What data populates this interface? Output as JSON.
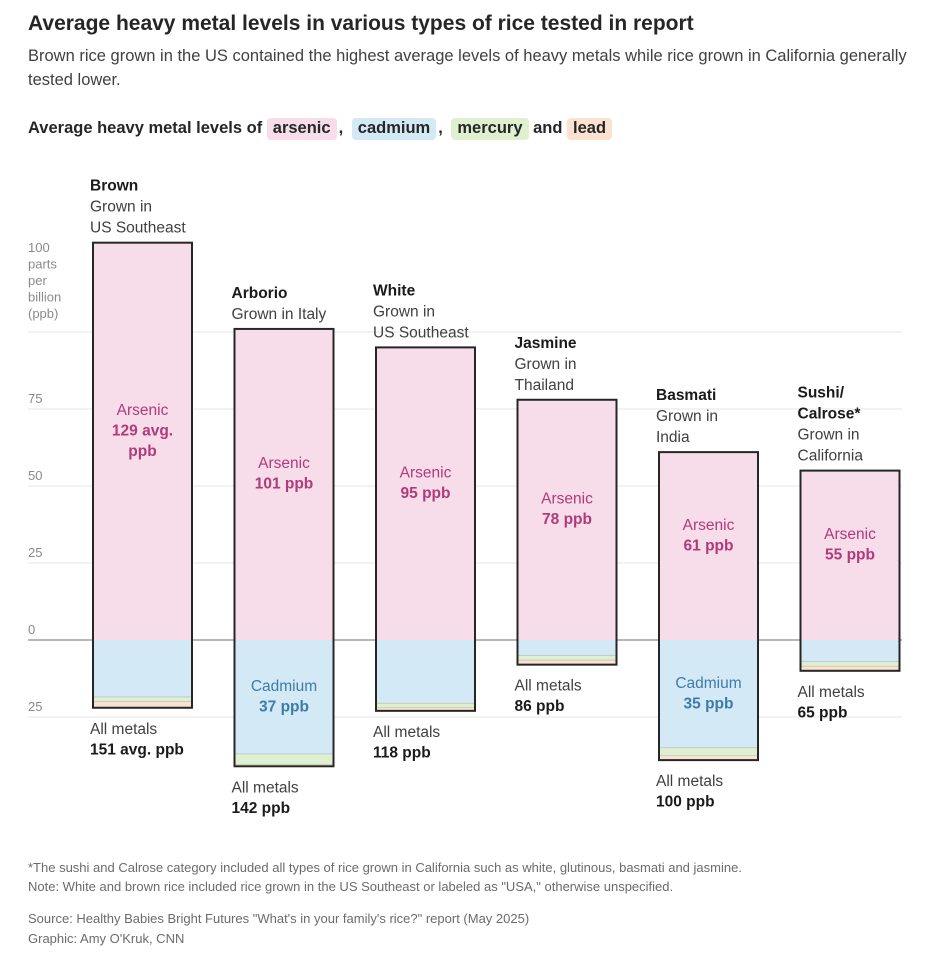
{
  "title": "Average heavy metal levels in various types of rice tested in report",
  "subtitle": "Brown rice grown in the US contained the highest average levels of heavy metals while rice grown in California generally tested lower.",
  "legend": {
    "prefix": "Average heavy metal levels of",
    "items": [
      {
        "label": "arsenic",
        "color": "#f7dcea"
      },
      {
        "label": "cadmium",
        "color": "#d4e9f6"
      },
      {
        "label": "mercury",
        "color": "#dff0d0"
      },
      {
        "label": "lead",
        "color": "#fbe1cf"
      }
    ],
    "sep": ",",
    "and": "and"
  },
  "colors": {
    "arsenic": "#f7dcea",
    "cadmium": "#d4e9f6",
    "mercury": "#dff0d0",
    "lead": "#fbe1cf",
    "arsenic_text": "#b03a7a",
    "cadmium_text": "#3d7ca8",
    "grid": "#e6e6e6",
    "zero": "#8c8c8c",
    "outline": "#262626"
  },
  "chart_data": {
    "type": "bar",
    "title": "Average heavy metal levels of arsenic, cadmium, mercury and lead",
    "unit_label": [
      "100",
      "parts",
      "per",
      "billion",
      "(ppb)"
    ],
    "ylim": [
      -25,
      129
    ],
    "yticks": [
      {
        "value": 75,
        "label": "75"
      },
      {
        "value": 50,
        "label": "50"
      },
      {
        "value": 25,
        "label": "25"
      },
      {
        "value": 0,
        "label": "0"
      },
      {
        "value": -25,
        "label": "25"
      }
    ],
    "series_names": [
      "arsenic",
      "cadmium",
      "mercury",
      "lead"
    ],
    "bars": [
      {
        "name": "Brown",
        "origin": [
          "Grown in",
          "US Southeast"
        ],
        "arsenic": 129,
        "cadmium": 18.5,
        "mercury": 1.5,
        "lead": 2,
        "arsenic_label": [
          "Arsenic",
          "129 avg.",
          "ppb"
        ],
        "cadmium_label": [],
        "total_label": [
          "All metals",
          "151 avg. ppb"
        ]
      },
      {
        "name": "Arborio",
        "origin": [
          "Grown in Italy"
        ],
        "arsenic": 101,
        "cadmium": 37,
        "mercury": 3.5,
        "lead": 0.5,
        "arsenic_label": [
          "Arsenic",
          "101 ppb"
        ],
        "cadmium_label": [
          "Cadmium",
          "37 ppb"
        ],
        "total_label": [
          "All metals",
          "142 ppb"
        ]
      },
      {
        "name": "White",
        "origin": [
          "Grown in",
          "US Southeast"
        ],
        "arsenic": 95,
        "cadmium": 20.5,
        "mercury": 1.5,
        "lead": 1,
        "arsenic_label": [
          "Arsenic",
          "95 ppb"
        ],
        "cadmium_label": [],
        "total_label": [
          "All metals",
          "118 ppb"
        ]
      },
      {
        "name": "Jasmine",
        "origin": [
          "Grown in",
          "Thailand"
        ],
        "arsenic": 78,
        "cadmium": 5,
        "mercury": 1.5,
        "lead": 1.5,
        "arsenic_label": [
          "Arsenic",
          "78 ppb"
        ],
        "cadmium_label": [],
        "total_label": [
          "All metals",
          "86 ppb"
        ]
      },
      {
        "name": "Basmati",
        "origin": [
          "Grown in",
          "India"
        ],
        "arsenic": 61,
        "cadmium": 35,
        "mercury": 2.5,
        "lead": 1.5,
        "arsenic_label": [
          "Arsenic",
          "61 ppb"
        ],
        "cadmium_label": [
          "Cadmium",
          "35 ppb"
        ],
        "total_label": [
          "All metals",
          "100 ppb"
        ]
      },
      {
        "name": "Sushi/ Calrose*",
        "name_lines": [
          "Sushi/",
          "Calrose*"
        ],
        "origin": [
          "Grown in",
          "California"
        ],
        "arsenic": 55,
        "cadmium": 7,
        "mercury": 1.5,
        "lead": 1.5,
        "arsenic_label": [
          "Arsenic",
          "55 ppb"
        ],
        "cadmium_label": [],
        "total_label": [
          "All metals",
          "65 ppb"
        ]
      }
    ]
  },
  "footnotes": [
    "*The sushi and Calrose category included all types of rice grown in California such as white, glutinous, basmati and jasmine.",
    "Note: White and brown rice included rice grown in the US Southeast or labeled as \"USA,\" otherwise unspecified."
  ],
  "source": "Source: Healthy Babies Bright Futures \"What's in your family's rice?\" report (May 2025)",
  "credit": "Graphic: Amy O'Kruk, CNN"
}
